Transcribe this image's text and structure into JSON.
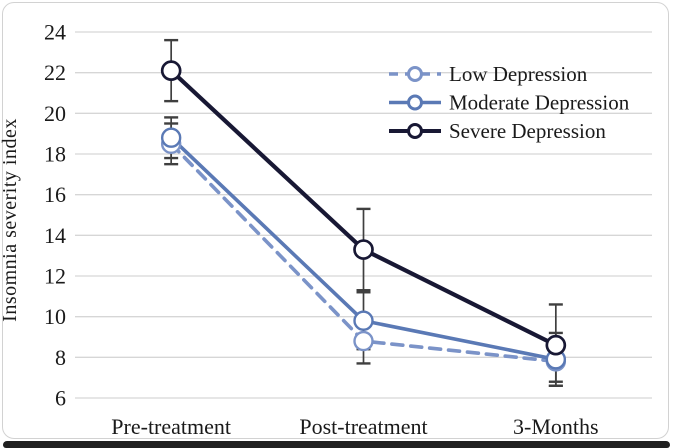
{
  "chart_data": {
    "type": "line",
    "title": "",
    "ylabel": "Insomnia severity index",
    "xlabel": "",
    "categories": [
      "Pre-treatment",
      "Post-treatment",
      "3-Months"
    ],
    "y_ticks": [
      24,
      22,
      20,
      18,
      16,
      14,
      12,
      10,
      8,
      6
    ],
    "ylim": [
      6,
      24
    ],
    "grid": "horizontal",
    "legend_position": "top-right",
    "series": [
      {
        "name": "Low Depression",
        "values": [
          18.5,
          8.8,
          7.8
        ],
        "error_bars": [
          1.0,
          1.1,
          1.0
        ],
        "color": "#7b93c8",
        "line_style": "dashed",
        "marker": "open-circle"
      },
      {
        "name": "Moderate Depression",
        "values": [
          18.8,
          9.8,
          7.9
        ],
        "error_bars": [
          1.0,
          1.4,
          1.3
        ],
        "color": "#5a79b5",
        "line_style": "solid",
        "marker": "open-circle"
      },
      {
        "name": "Severe Depression",
        "values": [
          22.1,
          13.3,
          8.6
        ],
        "error_bars": [
          1.5,
          2.0,
          2.0
        ],
        "color": "#181834",
        "line_style": "solid",
        "marker": "open-circle"
      }
    ],
    "colors": {
      "gridline": "#d6d6d6",
      "error_bar": "#3f3f3f",
      "text": "#1a1a1a",
      "marker_fill": "#ffffff"
    }
  }
}
